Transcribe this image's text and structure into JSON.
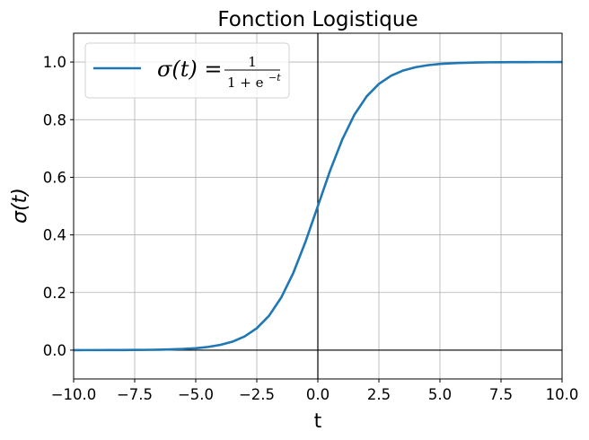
{
  "chart_data": {
    "type": "line",
    "title": "Fonction Logistique",
    "xlabel": "t",
    "ylabel": "σ(t)",
    "xlim": [
      -10,
      10
    ],
    "ylim": [
      -0.1,
      1.1
    ],
    "x_ticks": [
      -10,
      -7.5,
      -5,
      -2.5,
      0,
      2.5,
      5,
      7.5,
      10
    ],
    "x_tick_labels": [
      "−10.0",
      "−7.5",
      "−5.0",
      "−2.5",
      "0.0",
      "2.5",
      "5.0",
      "7.5",
      "10.0"
    ],
    "y_ticks": [
      0,
      0.2,
      0.4,
      0.6,
      0.8,
      1.0
    ],
    "y_tick_labels": [
      "0.0",
      "0.2",
      "0.4",
      "0.6",
      "0.8",
      "1.0"
    ],
    "grid": true,
    "legend_position": "top-left",
    "reference_lines": {
      "x": 0,
      "y": 0,
      "color": "#000000"
    },
    "series": [
      {
        "name": "σ(t) = 1/(1+e^−t)",
        "legend": {
          "lhs": "σ(t) = ",
          "numerator": "1",
          "denominator": "1 + e",
          "exponent": "−t"
        },
        "color": "#1f77b4",
        "x": [
          -10,
          -9.5,
          -9,
          -8.5,
          -8,
          -7.5,
          -7,
          -6.5,
          -6,
          -5.5,
          -5,
          -4.5,
          -4,
          -3.5,
          -3,
          -2.5,
          -2,
          -1.5,
          -1,
          -0.5,
          0,
          0.5,
          1,
          1.5,
          2,
          2.5,
          3,
          3.5,
          4,
          4.5,
          5,
          5.5,
          6,
          6.5,
          7,
          7.5,
          8,
          8.5,
          9,
          9.5,
          10
        ],
        "y": [
          0.0,
          0.0001,
          0.0001,
          0.0002,
          0.0003,
          0.0006,
          0.0009,
          0.0015,
          0.0025,
          0.0041,
          0.0067,
          0.011,
          0.018,
          0.0293,
          0.0474,
          0.0759,
          0.1192,
          0.1824,
          0.2689,
          0.3775,
          0.5,
          0.6225,
          0.7311,
          0.8176,
          0.8808,
          0.9241,
          0.9526,
          0.9707,
          0.982,
          0.989,
          0.9933,
          0.9959,
          0.9975,
          0.9985,
          0.9991,
          0.9994,
          0.9997,
          0.9998,
          0.9999,
          0.9999,
          1.0
        ]
      }
    ]
  }
}
